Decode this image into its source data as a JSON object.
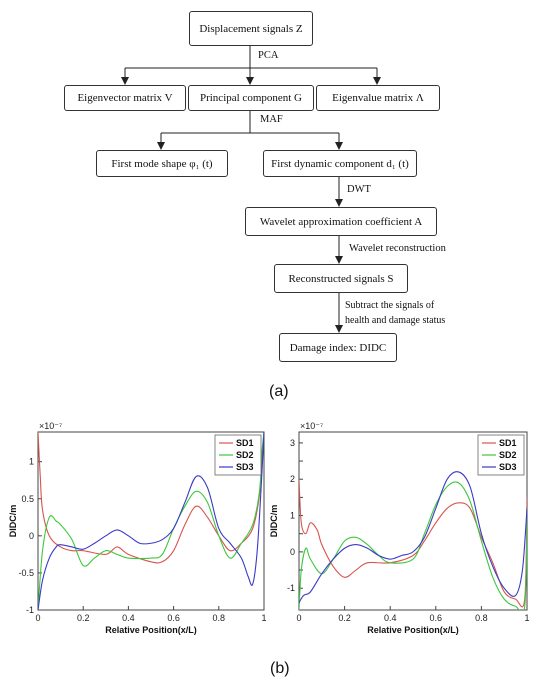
{
  "flowchart": {
    "nodes": {
      "displacement": "Displacement signals Z",
      "eigenvector": "Eigenvector matrix V",
      "principal": "Principal component G",
      "eigenvalue": "Eigenvalue matrix Λ",
      "mode_shape": "First mode shape φ₁ (t)",
      "dynamic": "First dynamic component d₁ (t)",
      "wavelet_coef": "Wavelet approximation coefficient A",
      "reconstructed": "Reconstructed signals S",
      "damage_index": "Damage index: DIDC"
    },
    "edges": {
      "pca": "PCA",
      "maf": "MAF",
      "dwt": "DWT",
      "wavelet_recon": "Wavelet reconstruction",
      "subtract_line1": "Subtract  the  signals  of",
      "subtract_line2": "health and damage status"
    }
  },
  "captions": {
    "a": "(a)",
    "b": "(b)"
  },
  "colors": {
    "SD1": "#d9534f",
    "SD2": "#3cc83c",
    "SD3": "#3a3ac8"
  },
  "chart_data": [
    {
      "type": "line",
      "scale_label": "×10⁻⁷",
      "xlabel": "Relative Position(x/L)",
      "ylabel": "DIDC/m",
      "xlim": [
        0,
        1
      ],
      "ylim": [
        -1,
        1.4
      ],
      "xticks": [
        0,
        0.2,
        0.4,
        0.6,
        0.8,
        1
      ],
      "yticks": [
        -1,
        -0.5,
        0,
        0.5,
        1
      ],
      "legend": "top-right",
      "series": [
        {
          "name": "SD1",
          "x": [
            0,
            0.01,
            0.02,
            0.05,
            0.1,
            0.15,
            0.2,
            0.3,
            0.35,
            0.4,
            0.5,
            0.55,
            0.6,
            0.65,
            0.7,
            0.75,
            0.8,
            0.85,
            0.9,
            0.95,
            0.98,
            0.99,
            1
          ],
          "y": [
            1.4,
            0.8,
            0.35,
            0.0,
            -0.15,
            -0.2,
            -0.2,
            -0.25,
            -0.15,
            -0.25,
            -0.35,
            -0.35,
            -0.2,
            0.15,
            0.4,
            0.25,
            0.0,
            -0.2,
            -0.1,
            0.1,
            0.55,
            1.0,
            1.4
          ]
        },
        {
          "name": "SD2",
          "x": [
            0,
            0.02,
            0.05,
            0.08,
            0.1,
            0.15,
            0.2,
            0.25,
            0.3,
            0.35,
            0.4,
            0.5,
            0.55,
            0.6,
            0.65,
            0.7,
            0.75,
            0.8,
            0.85,
            0.9,
            0.95,
            0.98,
            0.99,
            1
          ],
          "y": [
            -1.0,
            -0.2,
            0.25,
            0.2,
            0.15,
            -0.05,
            -0.4,
            -0.3,
            -0.2,
            -0.25,
            -0.3,
            -0.3,
            -0.25,
            0.1,
            0.4,
            0.6,
            0.45,
            0.0,
            -0.3,
            -0.1,
            0.15,
            0.6,
            1.1,
            1.4
          ]
        },
        {
          "name": "SD3",
          "x": [
            0,
            0.02,
            0.05,
            0.08,
            0.1,
            0.15,
            0.2,
            0.25,
            0.3,
            0.35,
            0.4,
            0.45,
            0.5,
            0.55,
            0.6,
            0.65,
            0.7,
            0.75,
            0.8,
            0.85,
            0.9,
            0.93,
            0.95,
            0.97,
            0.99,
            1
          ],
          "y": [
            -1.0,
            -0.6,
            -0.3,
            -0.15,
            -0.12,
            -0.15,
            -0.18,
            -0.1,
            0.0,
            0.08,
            0.0,
            -0.1,
            -0.1,
            -0.05,
            0.1,
            0.45,
            0.8,
            0.65,
            0.1,
            -0.1,
            -0.3,
            -0.55,
            -0.65,
            -0.2,
            0.8,
            1.4
          ]
        }
      ]
    },
    {
      "type": "line",
      "scale_label": "×10⁻⁷",
      "xlabel": "Relative Position(x/L)",
      "ylabel": "DIDC/m",
      "xlim": [
        0,
        1
      ],
      "ylim": [
        -1.6,
        3.3
      ],
      "xticks": [
        0,
        0.2,
        0.4,
        0.6,
        0.8,
        1
      ],
      "yticks": [
        -1,
        -0.5,
        0,
        0.5,
        1,
        1.5,
        2,
        2.5,
        3
      ],
      "ytick_labels": [
        "-1",
        "",
        "0",
        "",
        "1",
        "",
        "2",
        "",
        "3"
      ],
      "legend": "top-right",
      "series": [
        {
          "name": "SD1",
          "x": [
            0,
            0.01,
            0.03,
            0.05,
            0.08,
            0.1,
            0.15,
            0.2,
            0.25,
            0.3,
            0.4,
            0.5,
            0.55,
            0.6,
            0.65,
            0.7,
            0.75,
            0.8,
            0.85,
            0.9,
            0.95,
            0.99,
            1
          ],
          "y": [
            2.0,
            0.8,
            0.5,
            0.8,
            0.6,
            0.2,
            -0.4,
            -0.7,
            -0.5,
            -0.3,
            -0.3,
            -0.1,
            0.3,
            0.8,
            1.2,
            1.35,
            1.2,
            0.4,
            -0.3,
            -1.1,
            -1.3,
            -1.3,
            1.5
          ]
        },
        {
          "name": "SD2",
          "x": [
            0,
            0.01,
            0.03,
            0.05,
            0.1,
            0.15,
            0.2,
            0.25,
            0.3,
            0.35,
            0.4,
            0.5,
            0.55,
            0.6,
            0.65,
            0.7,
            0.75,
            0.8,
            0.85,
            0.9,
            0.95,
            0.99,
            1
          ],
          "y": [
            -1.6,
            -0.5,
            0.1,
            -0.2,
            -0.6,
            -0.2,
            0.3,
            0.4,
            0.2,
            -0.1,
            -0.3,
            -0.2,
            0.5,
            1.3,
            1.8,
            1.9,
            1.4,
            0.3,
            -0.7,
            -1.3,
            -1.5,
            -1.5,
            1.0
          ]
        },
        {
          "name": "SD3",
          "x": [
            0,
            0.02,
            0.05,
            0.1,
            0.15,
            0.2,
            0.25,
            0.3,
            0.35,
            0.4,
            0.45,
            0.5,
            0.55,
            0.6,
            0.65,
            0.7,
            0.75,
            0.8,
            0.85,
            0.9,
            0.95,
            0.98,
            1
          ],
          "y": [
            -1.4,
            -1.2,
            -1.1,
            -0.6,
            -0.2,
            0.1,
            0.2,
            0.1,
            -0.1,
            -0.2,
            -0.1,
            0.0,
            0.4,
            1.2,
            2.0,
            2.2,
            1.8,
            0.5,
            -0.4,
            -1.0,
            -1.2,
            -0.5,
            1.2
          ]
        }
      ]
    }
  ]
}
